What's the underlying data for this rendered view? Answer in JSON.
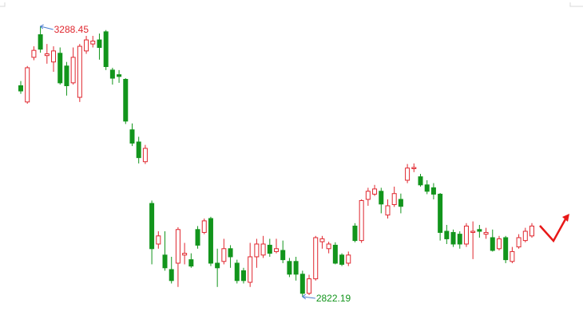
{
  "chart_data": {
    "type": "candlestick",
    "up_color": "#e0262e",
    "down_color": "#12951c",
    "annotation_arrow_color": "#4a7ed0",
    "open": [
      3186,
      3158,
      3235,
      3274,
      3238,
      3227,
      3242,
      3220,
      3191,
      3166,
      3246,
      3258,
      3265,
      3279,
      3213,
      3205,
      3197,
      3110,
      3089,
      3055,
      2983,
      2913,
      2894,
      2869,
      2880,
      2894,
      2886,
      2938,
      2933,
      2957,
      2880,
      2883,
      2905,
      2880,
      2867,
      2847,
      2891,
      2894,
      2911,
      2900,
      2902,
      2883,
      2883,
      2861,
      2828,
      2853,
      2917,
      2905,
      2911,
      2894,
      2880,
      2944,
      2919,
      2990,
      2999,
      3004,
      2963,
      2981,
      2990,
      3023,
      3043,
      3029,
      3015,
      3010,
      2999,
      2935,
      2933,
      2930,
      2913,
      2933,
      2938,
      2930,
      2924,
      2905,
      2924,
      2883,
      2908,
      2919,
      2927
    ],
    "high": [
      3194,
      3220,
      3254,
      3288.45,
      3258,
      3254,
      3252,
      3227,
      3252,
      3258,
      3272,
      3272,
      3276,
      3282,
      3217,
      3213,
      3199,
      3121,
      3098,
      3084,
      2988,
      2935,
      2935,
      2891,
      2942,
      2915,
      2897,
      2944,
      2957,
      2960,
      2905,
      2922,
      2911,
      2886,
      2872,
      2915,
      2922,
      2927,
      2922,
      2922,
      2919,
      2889,
      2891,
      2867,
      2860,
      2927,
      2927,
      2917,
      2916,
      2897,
      2900,
      2949,
      2990,
      3010,
      3015,
      3010,
      2990,
      3012,
      3000,
      3051,
      3052,
      3034,
      3023,
      3018,
      3001,
      2946,
      2938,
      2935,
      2949,
      2952,
      2946,
      2941,
      2938,
      2927,
      2927,
      2908,
      2930,
      2941,
      2949
    ],
    "low": [
      3172,
      3155,
      3230,
      3243,
      3224,
      3210,
      3188,
      3169,
      3188,
      3158,
      3241,
      3252,
      3231,
      3213,
      3188,
      3191,
      3120,
      3082,
      3052,
      3051,
      2878,
      2905,
      2867,
      2845,
      2839,
      2878,
      2872,
      2905,
      2930,
      2875,
      2839,
      2878,
      2872,
      2845,
      2845,
      2839,
      2872,
      2889,
      2891,
      2897,
      2880,
      2856,
      2850,
      2822.19,
      2825,
      2850,
      2905,
      2897,
      2878,
      2875,
      2875,
      2916,
      2915,
      2979,
      2996,
      2966,
      2957,
      2977,
      2966,
      3018,
      3037,
      3012,
      2999,
      2990,
      2919,
      2913,
      2908,
      2905,
      2908,
      2887,
      2924,
      2922,
      2900,
      2902,
      2880,
      2880,
      2905,
      2916,
      2924
    ],
    "close": [
      3177,
      3217,
      3247,
      3249,
      3241,
      3246,
      3191,
      3186,
      3235,
      3254,
      3265,
      3263,
      3252,
      3219,
      3199,
      3202,
      3125,
      3087,
      3062,
      3078,
      2905,
      2927,
      2872,
      2850,
      2938,
      2897,
      2875,
      2911,
      2953,
      2880,
      2872,
      2905,
      2891,
      2850,
      2850,
      2891,
      2913,
      2913,
      2897,
      2905,
      2886,
      2861,
      2861,
      2828,
      2853,
      2924,
      2922,
      2913,
      2880,
      2878,
      2894,
      2919,
      2988,
      3004,
      3008,
      2982,
      2979,
      3000,
      2978,
      3044,
      3045,
      3015,
      3004,
      2999,
      2933,
      2922,
      2913,
      2913,
      2944,
      2935,
      2935,
      2933,
      2902,
      2922,
      2886,
      2900,
      2924,
      2935,
      2944
    ]
  }
}
